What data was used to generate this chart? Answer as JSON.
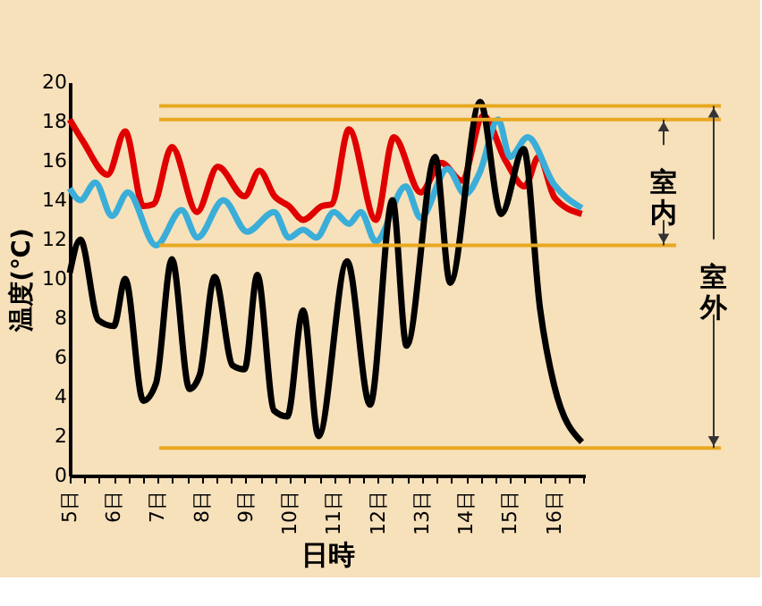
{
  "chart_data": {
    "type": "line",
    "xlabel": "日時",
    "ylabel": "温度(℃)",
    "xlim": [
      5,
      16.7
    ],
    "ylim": [
      0,
      20
    ],
    "xticks": [
      {
        "value": 5,
        "label": "5日"
      },
      {
        "value": 5.33,
        "label": null
      },
      {
        "value": 5.67,
        "label": null
      },
      {
        "value": 6,
        "label": "6日"
      },
      {
        "value": 6.33,
        "label": null
      },
      {
        "value": 6.67,
        "label": null
      },
      {
        "value": 7,
        "label": "7日"
      },
      {
        "value": 7.33,
        "label": null
      },
      {
        "value": 7.67,
        "label": null
      },
      {
        "value": 8,
        "label": "8日"
      },
      {
        "value": 8.33,
        "label": null
      },
      {
        "value": 8.67,
        "label": null
      },
      {
        "value": 9,
        "label": "9日"
      },
      {
        "value": 9.33,
        "label": null
      },
      {
        "value": 9.67,
        "label": null
      },
      {
        "value": 10,
        "label": "10日"
      },
      {
        "value": 10.33,
        "label": null
      },
      {
        "value": 10.67,
        "label": null
      },
      {
        "value": 11,
        "label": "11日"
      },
      {
        "value": 11.33,
        "label": null
      },
      {
        "value": 11.67,
        "label": null
      },
      {
        "value": 12,
        "label": "12日"
      },
      {
        "value": 12.33,
        "label": null
      },
      {
        "value": 12.67,
        "label": null
      },
      {
        "value": 13,
        "label": "13日"
      },
      {
        "value": 13.33,
        "label": null
      },
      {
        "value": 13.67,
        "label": null
      },
      {
        "value": 14,
        "label": "14日"
      },
      {
        "value": 14.33,
        "label": null
      },
      {
        "value": 14.67,
        "label": null
      },
      {
        "value": 15,
        "label": "15日"
      },
      {
        "value": 15.33,
        "label": null
      },
      {
        "value": 15.67,
        "label": null
      },
      {
        "value": 16,
        "label": "16日"
      },
      {
        "value": 16.33,
        "label": null
      },
      {
        "value": 16.67,
        "label": null
      }
    ],
    "yticks": [
      0,
      2,
      4,
      6,
      8,
      10,
      12,
      14,
      16,
      18,
      20
    ],
    "grid": false,
    "marker": "none",
    "line_style": "solid",
    "series": [
      {
        "color": "#e00000",
        "x": [
          5,
          5.3,
          5.86,
          6.26,
          6.67,
          6.9,
          7.32,
          7.89,
          8.36,
          8.97,
          9.31,
          9.65,
          9.98,
          10.3,
          10.73,
          10.95,
          11.34,
          11.95,
          12.36,
          12.97,
          13.44,
          13.9,
          14.39,
          14.9,
          15.33,
          15.65,
          16.02,
          16.63
        ],
        "values": [
          18.1,
          17.0,
          15.3,
          17.5,
          13.7,
          13.8,
          16.7,
          13.4,
          15.7,
          14.2,
          15.5,
          14.2,
          13.7,
          13.0,
          13.7,
          13.8,
          17.6,
          13.0,
          17.2,
          14.4,
          15.9,
          15.0,
          18.3,
          16.0,
          14.7,
          16.2,
          14.1,
          13.3
        ]
      },
      {
        "color": "#3aaed8",
        "x": [
          5,
          5.24,
          5.58,
          5.96,
          6.32,
          6.96,
          7.54,
          7.9,
          8.49,
          9.03,
          9.64,
          9.98,
          10.3,
          10.6,
          11.0,
          11.34,
          11.61,
          11.95,
          12.63,
          12.97,
          13.58,
          13.98,
          14.31,
          14.73,
          15.0,
          15.4,
          16.0,
          16.63
        ],
        "values": [
          14.6,
          14.0,
          14.9,
          13.2,
          14.4,
          11.7,
          13.5,
          12.1,
          14.0,
          12.4,
          13.4,
          12.1,
          12.5,
          12.1,
          13.4,
          12.8,
          13.4,
          11.9,
          14.7,
          13.1,
          15.6,
          14.3,
          15.4,
          18.1,
          16.2,
          17.2,
          14.8,
          13.6
        ]
      },
      {
        "color": "#000000",
        "x": [
          5,
          5.24,
          5.65,
          6.0,
          6.26,
          6.67,
          6.96,
          7.32,
          7.72,
          7.95,
          8.29,
          8.7,
          8.97,
          9.26,
          9.64,
          9.94,
          10.3,
          10.65,
          11.3,
          11.82,
          12.33,
          12.65,
          13.3,
          13.64,
          14.32,
          14.8,
          15.31,
          15.68,
          16.0,
          16.63
        ],
        "values": [
          10.3,
          12.0,
          7.9,
          7.6,
          10.0,
          3.8,
          4.7,
          11.0,
          4.4,
          5.1,
          10.1,
          5.6,
          5.4,
          10.2,
          3.3,
          3.0,
          8.4,
          2.0,
          10.9,
          3.6,
          14.0,
          6.6,
          16.2,
          9.8,
          19.0,
          13.3,
          16.6,
          8.5,
          4.6,
          1.7
        ]
      }
    ],
    "ref_lines": [
      {
        "axis": "y",
        "value": 18.8,
        "color": "#e8a820"
      },
      {
        "axis": "y",
        "value": 18.1,
        "color": "#e8a820"
      },
      {
        "axis": "y",
        "value": 11.7,
        "color": "#e8a820"
      },
      {
        "axis": "y",
        "value": 1.4,
        "color": "#e8a820"
      }
    ],
    "annotations": [
      "室内",
      "室外"
    ]
  }
}
